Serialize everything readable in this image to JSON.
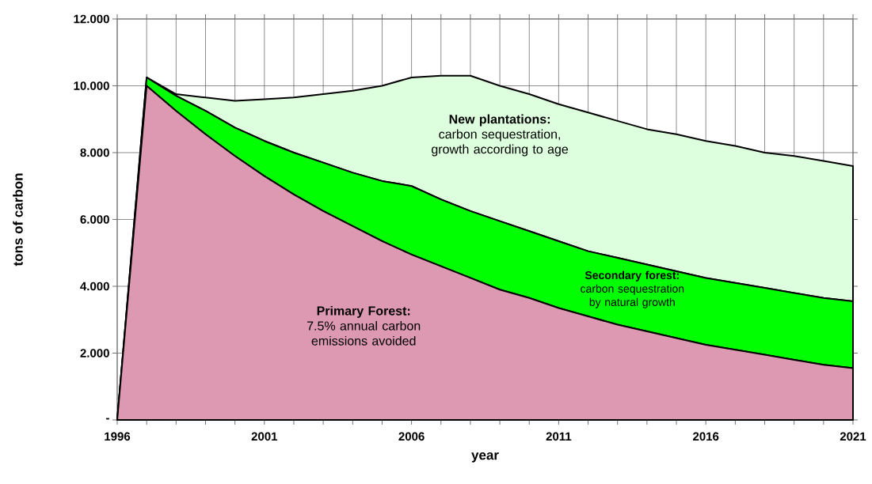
{
  "chart_data": {
    "type": "area",
    "stacked": true,
    "grid": true,
    "xlabel": "year",
    "ylabel": "tons of carbon",
    "x": [
      1996,
      1997,
      1998,
      1999,
      2000,
      2001,
      2002,
      2003,
      2004,
      2005,
      2006,
      2007,
      2008,
      2009,
      2010,
      2011,
      2012,
      2013,
      2014,
      2015,
      2016,
      2017,
      2018,
      2019,
      2020,
      2021
    ],
    "series": [
      {
        "color": "#dd99b1",
        "values": [
          0,
          10,
          9.25,
          8.55,
          7.9,
          7.3,
          6.75,
          6.25,
          5.8,
          5.35,
          4.95,
          4.6,
          4.25,
          3.9,
          3.65,
          3.35,
          3.1,
          2.85,
          2.65,
          2.45,
          2.25,
          2.1,
          1.95,
          1.8,
          1.65,
          1.55
        ]
      },
      {
        "color": "#00ff00",
        "values": [
          0,
          0.25,
          0.45,
          0.7,
          0.85,
          1.05,
          1.25,
          1.45,
          1.6,
          1.8,
          2.05,
          2,
          2,
          2.05,
          2,
          2,
          1.95,
          2,
          2,
          2,
          2,
          2,
          2,
          2,
          2,
          2
        ]
      },
      {
        "color": "#ddffdd",
        "values": [
          0,
          0,
          0.05,
          0.4,
          0.8,
          1.25,
          1.65,
          2.05,
          2.45,
          2.85,
          3.25,
          3.7,
          4.05,
          4.05,
          4.1,
          4.1,
          4.15,
          4.1,
          4.05,
          4.1,
          4.1,
          4.1,
          4.05,
          4.1,
          4.1,
          4.05
        ]
      }
    ],
    "xlim": [
      1996,
      2021
    ],
    "xticks": [
      1996,
      {
        "value": 1997,
        "label": null
      },
      {
        "value": 1998,
        "label": null
      },
      {
        "value": 1999,
        "label": null
      },
      {
        "value": 2000,
        "label": null
      },
      2001,
      {
        "value": 2002,
        "label": null
      },
      {
        "value": 2003,
        "label": null
      },
      {
        "value": 2004,
        "label": null
      },
      {
        "value": 2005,
        "label": null
      },
      2006,
      {
        "value": 2007,
        "label": null
      },
      {
        "value": 2008,
        "label": null
      },
      {
        "value": 2009,
        "label": null
      },
      {
        "value": 2010,
        "label": null
      },
      2011,
      {
        "value": 2012,
        "label": null
      },
      {
        "value": 2013,
        "label": null
      },
      {
        "value": 2014,
        "label": null
      },
      {
        "value": 2015,
        "label": null
      },
      2016,
      {
        "value": 2017,
        "label": null
      },
      {
        "value": 2018,
        "label": null
      },
      {
        "value": 2019,
        "label": null
      },
      {
        "value": 2020,
        "label": null
      },
      2021
    ],
    "ylim": [
      0,
      12
    ],
    "yticks": [
      {
        "value": 0,
        "label": "-"
      },
      {
        "value": 2,
        "label": "2.000"
      },
      {
        "value": 4,
        "label": "4.000"
      },
      {
        "value": 6,
        "label": "6.000"
      },
      {
        "value": 8,
        "label": "8.000"
      },
      {
        "value": 10,
        "label": "10.000"
      },
      {
        "value": 12,
        "label": "12.000"
      }
    ],
    "annotations": [
      "**New plantations:** carbon sequestration, growth according to age",
      "**Secondary forest:** carbon sequestration by natural growth",
      "**Primary Forest:** 7.5% annual carbon emissions avoided"
    ]
  }
}
